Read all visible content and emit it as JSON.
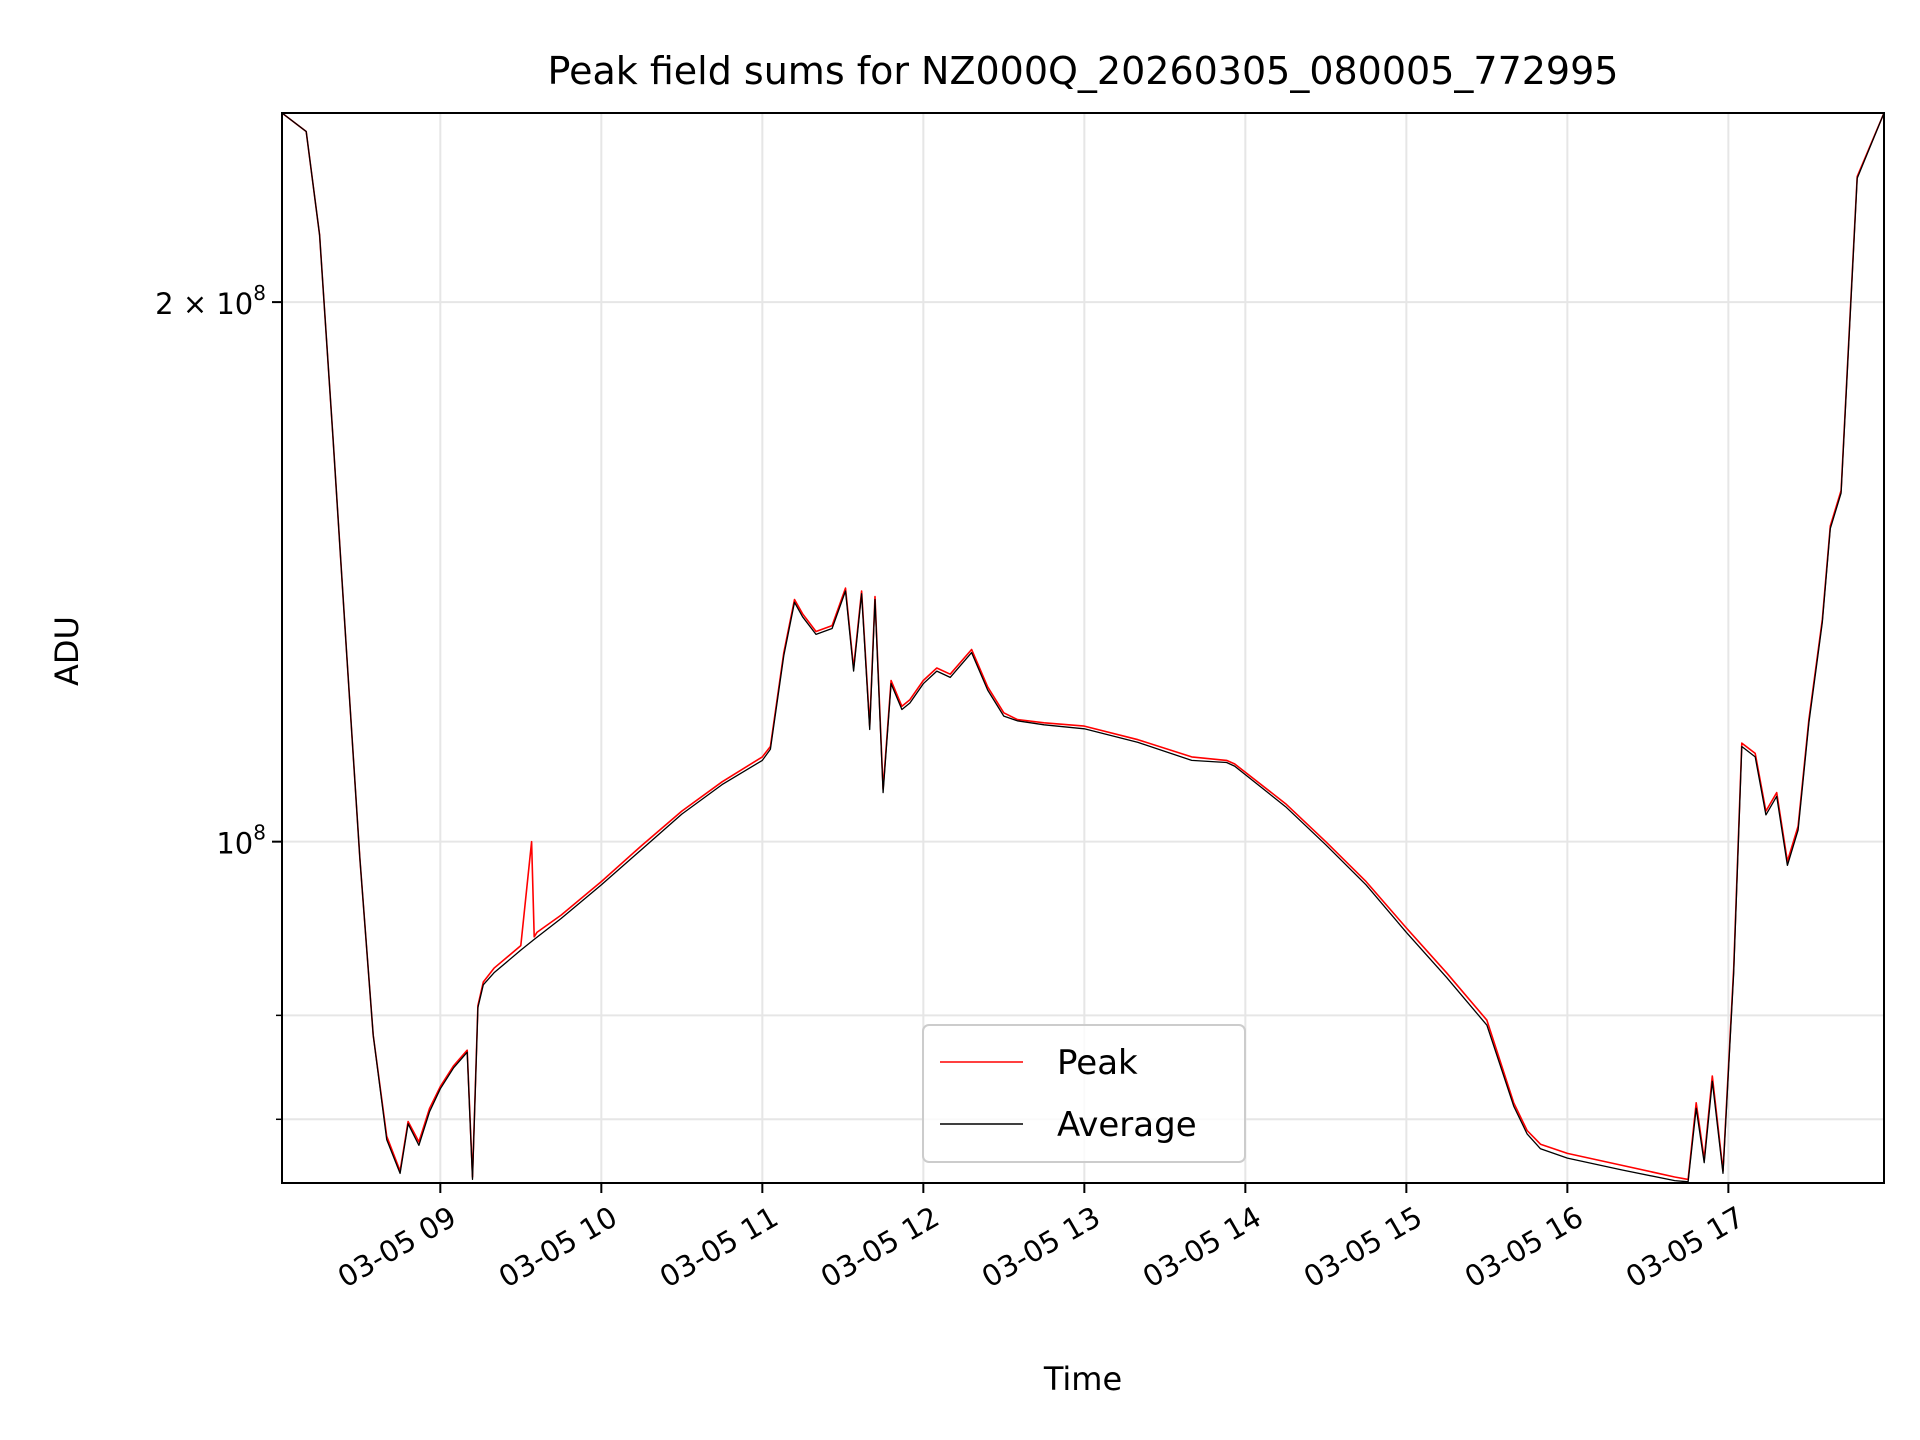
{
  "chart_data": {
    "type": "line",
    "title": "Peak field sums for NZ000Q_20260305_080005_772995",
    "xlabel": "Time",
    "ylabel": "ADU",
    "yscale": "log",
    "xlim": [
      "2026-03-05T08:01:00",
      "2026-03-05T17:58:00"
    ],
    "ylim": [
      64500000.0,
      255000000.0
    ],
    "grid": true,
    "legend_position": "lower-center",
    "x_ticks": [
      {
        "value": "2026-03-05T09:00:00",
        "label": "03-05 09"
      },
      {
        "value": "2026-03-05T10:00:00",
        "label": "03-05 10"
      },
      {
        "value": "2026-03-05T11:00:00",
        "label": "03-05 11"
      },
      {
        "value": "2026-03-05T12:00:00",
        "label": "03-05 12"
      },
      {
        "value": "2026-03-05T13:00:00",
        "label": "03-05 13"
      },
      {
        "value": "2026-03-05T14:00:00",
        "label": "03-05 14"
      },
      {
        "value": "2026-03-05T15:00:00",
        "label": "03-05 15"
      },
      {
        "value": "2026-03-05T16:00:00",
        "label": "03-05 16"
      },
      {
        "value": "2026-03-05T17:00:00",
        "label": "03-05 17"
      }
    ],
    "y_major_ticks": [
      {
        "value": 100000000,
        "base": "10",
        "exp": "8",
        "coef": ""
      },
      {
        "value": 200000000,
        "base": "10",
        "exp": "8",
        "coef": "2 × "
      }
    ],
    "y_minor_ticks": [
      70000000,
      80000000
    ],
    "series": [
      {
        "name": "Peak",
        "color": "#ff0000",
        "x": [
          "2026-03-05T08:01:00",
          "2026-03-05T08:10:00",
          "2026-03-05T08:15:00",
          "2026-03-05T08:20:00",
          "2026-03-05T08:25:00",
          "2026-03-05T08:30:00",
          "2026-03-05T08:35:00",
          "2026-03-05T08:40:00",
          "2026-03-05T08:45:00",
          "2026-03-05T08:48:00",
          "2026-03-05T08:52:00",
          "2026-03-05T08:56:00",
          "2026-03-05T09:00:00",
          "2026-03-05T09:05:00",
          "2026-03-05T09:10:00",
          "2026-03-05T09:12:00",
          "2026-03-05T09:14:00",
          "2026-03-05T09:16:00",
          "2026-03-05T09:20:00",
          "2026-03-05T09:30:00",
          "2026-03-05T09:34:00",
          "2026-03-05T09:35:00",
          "2026-03-05T09:36:00",
          "2026-03-05T09:45:00",
          "2026-03-05T10:00:00",
          "2026-03-05T10:15:00",
          "2026-03-05T10:30:00",
          "2026-03-05T10:45:00",
          "2026-03-05T11:00:00",
          "2026-03-05T11:03:00",
          "2026-03-05T11:08:00",
          "2026-03-05T11:12:00",
          "2026-03-05T11:15:00",
          "2026-03-05T11:20:00",
          "2026-03-05T11:26:00",
          "2026-03-05T11:31:00",
          "2026-03-05T11:34:00",
          "2026-03-05T11:37:00",
          "2026-03-05T11:40:00",
          "2026-03-05T11:42:00",
          "2026-03-05T11:45:00",
          "2026-03-05T11:48:00",
          "2026-03-05T11:52:00",
          "2026-03-05T11:55:00",
          "2026-03-05T12:00:00",
          "2026-03-05T12:05:00",
          "2026-03-05T12:10:00",
          "2026-03-05T12:18:00",
          "2026-03-05T12:24:00",
          "2026-03-05T12:30:00",
          "2026-03-05T12:35:00",
          "2026-03-05T12:45:00",
          "2026-03-05T13:00:00",
          "2026-03-05T13:20:00",
          "2026-03-05T13:40:00",
          "2026-03-05T13:53:00",
          "2026-03-05T13:56:00",
          "2026-03-05T14:15:00",
          "2026-03-05T14:30:00",
          "2026-03-05T14:45:00",
          "2026-03-05T15:00:00",
          "2026-03-05T15:15:00",
          "2026-03-05T15:30:00",
          "2026-03-05T15:40:00",
          "2026-03-05T15:45:00",
          "2026-03-05T15:50:00",
          "2026-03-05T16:00:00",
          "2026-03-05T16:20:00",
          "2026-03-05T16:40:00",
          "2026-03-05T16:45:00",
          "2026-03-05T16:48:00",
          "2026-03-05T16:51:00",
          "2026-03-05T16:54:00",
          "2026-03-05T16:58:00",
          "2026-03-05T17:02:00",
          "2026-03-05T17:05:00",
          "2026-03-05T17:10:00",
          "2026-03-05T17:14:00",
          "2026-03-05T17:18:00",
          "2026-03-05T17:22:00",
          "2026-03-05T17:26:00",
          "2026-03-05T17:30:00",
          "2026-03-05T17:35:00",
          "2026-03-05T17:38:00",
          "2026-03-05T17:42:00",
          "2026-03-05T17:48:00",
          "2026-03-05T17:58:00"
        ],
        "values": [
          255000000,
          249000000,
          218000000,
          168000000,
          128000000,
          98000000,
          78000000,
          68500000,
          65500000,
          69800000,
          68000000,
          71000000,
          73000000,
          75000000,
          76500000,
          65000000,
          81000000,
          83500000,
          85000000,
          87500000,
          100000000,
          88500000,
          89000000,
          91000000,
          95000000,
          99500000,
          104000000,
          108000000,
          111500000,
          113000000,
          127500000,
          136500000,
          134000000,
          131000000,
          132000000,
          138500000,
          125000000,
          138000000,
          116000000,
          137000000,
          107000000,
          123000000,
          119000000,
          120000000,
          123000000,
          125000000,
          124000000,
          128000000,
          122000000,
          118000000,
          117000000,
          116500000,
          116000000,
          114000000,
          111500000,
          111000000,
          110500000,
          105000000,
          100000000,
          95000000,
          89500000,
          84500000,
          79500000,
          71500000,
          69000000,
          67800000,
          67000000,
          66000000,
          65000000,
          64800000,
          71500000,
          66500000,
          74000000,
          65500000,
          85000000,
          113500000,
          112000000,
          104000000,
          106500000,
          97500000,
          102000000,
          117000000,
          133000000,
          150000000,
          157000000,
          235000000,
          255000000
        ]
      },
      {
        "name": "Average",
        "color": "#000000",
        "x": [
          "2026-03-05T08:01:00",
          "2026-03-05T08:10:00",
          "2026-03-05T08:15:00",
          "2026-03-05T08:20:00",
          "2026-03-05T08:25:00",
          "2026-03-05T08:30:00",
          "2026-03-05T08:35:00",
          "2026-03-05T08:40:00",
          "2026-03-05T08:45:00",
          "2026-03-05T08:48:00",
          "2026-03-05T08:52:00",
          "2026-03-05T08:56:00",
          "2026-03-05T09:00:00",
          "2026-03-05T09:05:00",
          "2026-03-05T09:10:00",
          "2026-03-05T09:12:00",
          "2026-03-05T09:14:00",
          "2026-03-05T09:16:00",
          "2026-03-05T09:20:00",
          "2026-03-05T09:30:00",
          "2026-03-05T09:35:00",
          "2026-03-05T09:45:00",
          "2026-03-05T10:00:00",
          "2026-03-05T10:15:00",
          "2026-03-05T10:30:00",
          "2026-03-05T10:45:00",
          "2026-03-05T11:00:00",
          "2026-03-05T11:03:00",
          "2026-03-05T11:08:00",
          "2026-03-05T11:12:00",
          "2026-03-05T11:15:00",
          "2026-03-05T11:20:00",
          "2026-03-05T11:26:00",
          "2026-03-05T11:31:00",
          "2026-03-05T11:34:00",
          "2026-03-05T11:37:00",
          "2026-03-05T11:40:00",
          "2026-03-05T11:42:00",
          "2026-03-05T11:45:00",
          "2026-03-05T11:48:00",
          "2026-03-05T11:52:00",
          "2026-03-05T11:55:00",
          "2026-03-05T12:00:00",
          "2026-03-05T12:05:00",
          "2026-03-05T12:10:00",
          "2026-03-05T12:18:00",
          "2026-03-05T12:24:00",
          "2026-03-05T12:30:00",
          "2026-03-05T12:35:00",
          "2026-03-05T12:45:00",
          "2026-03-05T13:00:00",
          "2026-03-05T13:20:00",
          "2026-03-05T13:40:00",
          "2026-03-05T13:53:00",
          "2026-03-05T13:56:00",
          "2026-03-05T14:15:00",
          "2026-03-05T14:30:00",
          "2026-03-05T14:45:00",
          "2026-03-05T15:00:00",
          "2026-03-05T15:15:00",
          "2026-03-05T15:30:00",
          "2026-03-05T15:40:00",
          "2026-03-05T15:45:00",
          "2026-03-05T15:50:00",
          "2026-03-05T16:00:00",
          "2026-03-05T16:20:00",
          "2026-03-05T16:40:00",
          "2026-03-05T16:45:00",
          "2026-03-05T16:48:00",
          "2026-03-05T16:51:00",
          "2026-03-05T16:54:00",
          "2026-03-05T16:58:00",
          "2026-03-05T17:02:00",
          "2026-03-05T17:05:00",
          "2026-03-05T17:10:00",
          "2026-03-05T17:14:00",
          "2026-03-05T17:18:00",
          "2026-03-05T17:22:00",
          "2026-03-05T17:26:00",
          "2026-03-05T17:30:00",
          "2026-03-05T17:35:00",
          "2026-03-05T17:38:00",
          "2026-03-05T17:42:00",
          "2026-03-05T17:48:00",
          "2026-03-05T17:58:00"
        ],
        "values": [
          255000000,
          249000000,
          218000000,
          168000000,
          128000000,
          98000000,
          78000000,
          68200000,
          65300000,
          69600000,
          67700000,
          70700000,
          72800000,
          74800000,
          76300000,
          64800000,
          80800000,
          83200000,
          84500000,
          87000000,
          88200000,
          90600000,
          94600000,
          99000000,
          103600000,
          107600000,
          111000000,
          112600000,
          127000000,
          136000000,
          133500000,
          130500000,
          131500000,
          138000000,
          124500000,
          137500000,
          115500000,
          136500000,
          106500000,
          122500000,
          118500000,
          119500000,
          122500000,
          124500000,
          123500000,
          127500000,
          121500000,
          117500000,
          116800000,
          116200000,
          115600000,
          113600000,
          111000000,
          110700000,
          110200000,
          104600000,
          99600000,
          94600000,
          89000000,
          84000000,
          79000000,
          71200000,
          68700000,
          67400000,
          66600000,
          65600000,
          64700000,
          64600000,
          71000000,
          66200000,
          73500000,
          65300000,
          84500000,
          113000000,
          111500000,
          103500000,
          106000000,
          97000000,
          101500000,
          116500000,
          132500000,
          149500000,
          156500000,
          234500000,
          255000000
        ]
      }
    ]
  }
}
